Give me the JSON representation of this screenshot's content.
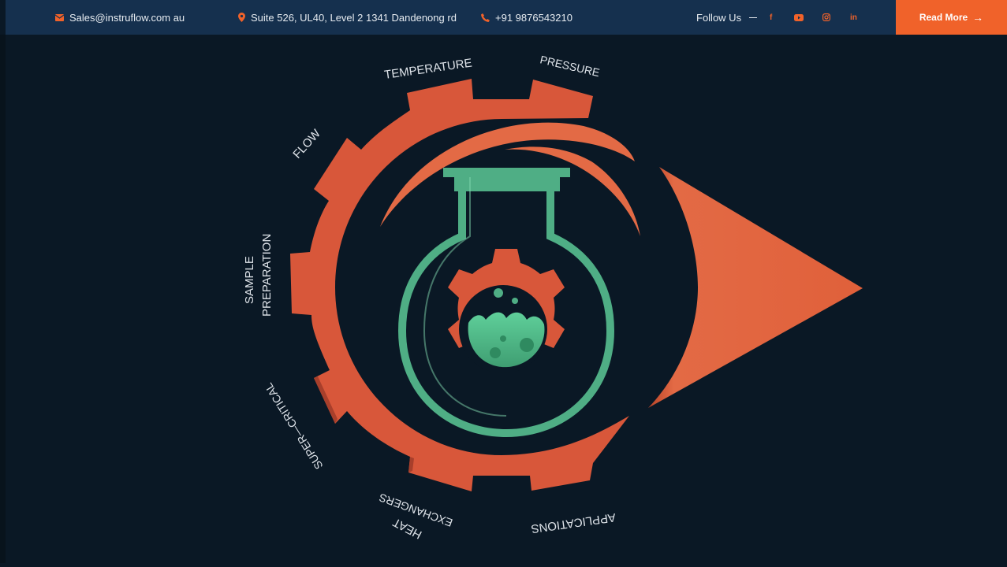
{
  "topbar": {
    "email": "Sales@instruflow.com au",
    "address": "Suite 526, UL40, Level 2 1341 Dandenong rd",
    "phone": "+91 9876543210",
    "follow_label": "Follow Us",
    "social": [
      "f",
      "youtube",
      "instagram",
      "in"
    ],
    "cta_label": "Read More"
  },
  "hero": {
    "labels": {
      "temperature": "TEMPERATURE",
      "pressure": "PRESSURE",
      "flow": "FLOW",
      "sample_1": "SAMPLE",
      "sample_2": "PREPARATION",
      "super_critical": "SUPER—CRITICAL",
      "heat_1": "HEAT",
      "heat_2": "EXCHANGERS",
      "applications": "APPLICATIONS"
    }
  },
  "colors": {
    "accent": "#f0622a",
    "gear": "#d8573a",
    "flask": "#4fae85",
    "background": "#0a1825",
    "topbar": "#15304e"
  },
  "icons": [
    "mail-icon",
    "location-pin-icon",
    "phone-icon",
    "facebook-icon",
    "youtube-icon",
    "instagram-icon",
    "linkedin-icon",
    "arrow-right-icon"
  ]
}
